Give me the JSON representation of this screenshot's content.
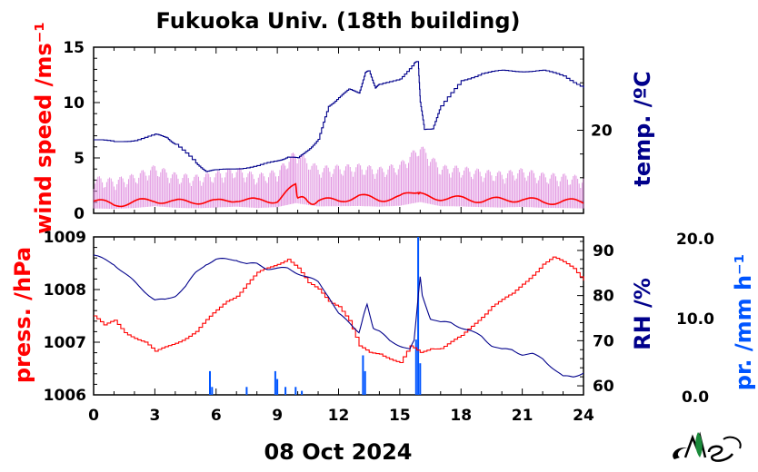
{
  "chart_data": [
    {
      "type": "line",
      "title": "Fukuoka Univ. (18th building)",
      "x_range": [
        0,
        24
      ],
      "left_axis": {
        "label": "wind speed /ms⁻¹",
        "color": "#ff0000",
        "ylim": [
          0,
          15
        ],
        "ticks": [
          0,
          5,
          10,
          15
        ]
      },
      "right_axis": {
        "label": "temp. /ºC",
        "color": "#00008b",
        "ticks": [
          20
        ]
      },
      "series": [
        {
          "name": "wind speed",
          "axis": "left",
          "color": "#ff0000",
          "x": [
            0,
            1,
            2,
            3,
            4,
            5,
            6,
            7,
            8,
            9,
            9.9,
            10,
            10.5,
            11,
            12,
            13,
            14,
            15,
            15.9,
            16,
            17,
            18,
            19,
            20,
            21,
            22,
            23,
            24
          ],
          "values": [
            1.1,
            0.8,
            1.0,
            1.2,
            1.0,
            1.1,
            1.0,
            1.3,
            1.1,
            1.2,
            2.5,
            1.5,
            1.0,
            1.1,
            1.2,
            1.5,
            1.3,
            1.4,
            2.1,
            1.6,
            1.4,
            1.3,
            1.2,
            1.2,
            1.3,
            1.0,
            1.1,
            1.0
          ]
        },
        {
          "name": "wind gust",
          "axis": "left",
          "color": "#dd88dd",
          "x": [
            0,
            1,
            2,
            3,
            4,
            5,
            6,
            7,
            8,
            9,
            9.9,
            11,
            12,
            13,
            14,
            15,
            16,
            17,
            18,
            19,
            20,
            21,
            22,
            23,
            24
          ],
          "values": [
            2.2,
            2.0,
            2.4,
            3.2,
            2.5,
            2.3,
            2.6,
            3.0,
            2.4,
            2.8,
            4.6,
            3.1,
            3.2,
            3.3,
            3.0,
            3.4,
            5.1,
            3.2,
            3.1,
            2.8,
            2.6,
            2.9,
            2.5,
            2.4,
            2.2
          ]
        },
        {
          "name": "temperature",
          "axis": "right",
          "color": "#00008b",
          "x": [
            0,
            1,
            2,
            3,
            3.6,
            4,
            5,
            5.5,
            6,
            7,
            8,
            9,
            9.5,
            10,
            10.5,
            11,
            11.5,
            12,
            12.5,
            13,
            13.3,
            13.5,
            13.8,
            14,
            15,
            15.7,
            15.9,
            16,
            16.2,
            16.6,
            17,
            18,
            19,
            20,
            21,
            22,
            23,
            24
          ],
          "values": [
            19.6,
            19.5,
            19.6,
            19.8,
            19.7,
            19.4,
            18.6,
            18.3,
            18.3,
            18.4,
            18.5,
            18.7,
            18.9,
            18.8,
            19.2,
            19.6,
            21.0,
            21.4,
            21.7,
            21.6,
            22.4,
            22.5,
            21.8,
            21.9,
            22.2,
            22.8,
            22.9,
            21.2,
            20.0,
            20.1,
            21.0,
            22.1,
            22.4,
            22.5,
            22.5,
            22.5,
            22.3,
            21.8
          ]
        }
      ]
    },
    {
      "type": "line",
      "xlabel": "08 Oct 2024",
      "x_range": [
        0,
        24
      ],
      "x_ticks": [
        0,
        3,
        6,
        9,
        12,
        15,
        18,
        21,
        24
      ],
      "left_axis": {
        "label": "press. /hPa",
        "color": "#ff0000",
        "ylim": [
          1006,
          1009
        ],
        "ticks": [
          1006,
          1007,
          1008,
          1009
        ]
      },
      "right_axis": {
        "label": "RH /%",
        "color": "#00008b",
        "ylim": [
          58,
          93
        ],
        "ticks": [
          60,
          70,
          80,
          90
        ]
      },
      "extra_axis": {
        "label": "pr. /mm h⁻¹",
        "color": "#0055ff",
        "ylim": [
          0,
          20
        ],
        "tick_labels": [
          "20.0",
          "10.0",
          "0.0"
        ]
      },
      "series": [
        {
          "name": "pressure",
          "axis": "left",
          "color": "#ff0000",
          "x": [
            0,
            0.5,
            1,
            1.5,
            2,
            2.5,
            3,
            3.5,
            4,
            4.5,
            5,
            5.5,
            6,
            6.5,
            7,
            7.5,
            8,
            8.5,
            9,
            9.5,
            10,
            10.5,
            11,
            11.5,
            12,
            12.5,
            13,
            13.5,
            14,
            14.5,
            15,
            15.5,
            16,
            16.5,
            17,
            17.5,
            18,
            18.5,
            19,
            19.5,
            20,
            20.5,
            21,
            21.5,
            22,
            22.5,
            23,
            23.5,
            24
          ],
          "values": [
            1007.5,
            1007.3,
            1007.4,
            1007.2,
            1007.1,
            1007.0,
            1006.8,
            1006.9,
            1007.0,
            1007.1,
            1007.2,
            1007.4,
            1007.6,
            1007.8,
            1007.9,
            1008.1,
            1008.3,
            1008.4,
            1008.5,
            1008.6,
            1008.4,
            1008.1,
            1008.0,
            1007.8,
            1007.7,
            1007.4,
            1006.9,
            1006.8,
            1006.8,
            1006.7,
            1006.6,
            1006.9,
            1006.8,
            1006.9,
            1006.9,
            1007.0,
            1007.1,
            1007.3,
            1007.5,
            1007.7,
            1007.8,
            1007.9,
            1008.1,
            1008.3,
            1008.5,
            1008.6,
            1008.5,
            1008.4,
            1008.2
          ]
        },
        {
          "name": "relative humidity",
          "axis": "right",
          "color": "#00008b",
          "x": [
            0,
            0.5,
            1,
            1.5,
            2,
            2.5,
            3,
            3.5,
            4,
            4.5,
            5,
            5.5,
            6,
            6.5,
            7,
            7.5,
            8,
            8.5,
            9,
            9.5,
            10,
            10.5,
            11,
            11.5,
            12,
            12.5,
            13,
            13.2,
            13.4,
            13.7,
            14,
            14.5,
            15,
            15.5,
            15.7,
            15.9,
            16,
            16.1,
            16.5,
            17,
            17.5,
            18,
            18.5,
            19,
            19.5,
            20,
            20.5,
            21,
            21.5,
            22,
            22.5,
            23,
            23.5,
            24
          ],
          "values": [
            89,
            88,
            87,
            85,
            83,
            81,
            79,
            79,
            80,
            82,
            85,
            87,
            88,
            88,
            88,
            87,
            87,
            86,
            86,
            86,
            85,
            84,
            83,
            80,
            76,
            74,
            72,
            75,
            78,
            73,
            72,
            70,
            69,
            68,
            70,
            80,
            84,
            80,
            75,
            74,
            74,
            73,
            72,
            71,
            69,
            68,
            68,
            67,
            67,
            66,
            64,
            62,
            62,
            63
          ]
        },
        {
          "name": "precipitation",
          "axis": "extra",
          "color": "#0055ff",
          "x": [
            5.7,
            5.8,
            7.5,
            8.9,
            9.0,
            9.4,
            9.9,
            10.2,
            13.2,
            13.3,
            15.8,
            15.9,
            16.0
          ],
          "values": [
            3.0,
            1.0,
            1.0,
            3.0,
            2.0,
            1.0,
            1.0,
            0.5,
            5.0,
            3.0,
            7.0,
            20.0,
            4.0
          ]
        }
      ]
    }
  ]
}
